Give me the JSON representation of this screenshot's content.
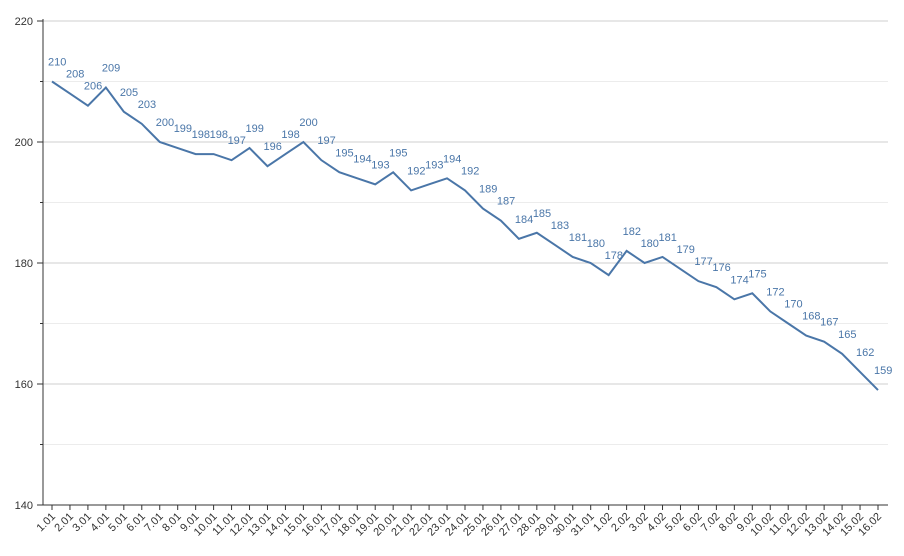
{
  "chart_data": {
    "type": "line",
    "categories": [
      "1.01",
      "2.01",
      "3.01",
      "4.01",
      "5.01",
      "6.01",
      "7.01",
      "8.01",
      "9.01",
      "10.01",
      "11.01",
      "12.01",
      "13.01",
      "14.01",
      "15.01",
      "16.01",
      "17.01",
      "18.01",
      "19.01",
      "20.01",
      "21.01",
      "22.01",
      "23.01",
      "24.01",
      "25.01",
      "26.01",
      "27.01",
      "28.01",
      "29.01",
      "30.01",
      "31.01",
      "1.02",
      "2.02",
      "3.02",
      "4.02",
      "5.02",
      "6.02",
      "7.02",
      "8.02",
      "9.02",
      "10.02",
      "11.02",
      "12.02",
      "13.02",
      "14.02",
      "15.02",
      "16.02"
    ],
    "values": [
      210,
      208,
      206,
      209,
      205,
      203,
      200,
      199,
      198,
      198,
      197,
      199,
      196,
      198,
      200,
      197,
      195,
      194,
      193,
      195,
      192,
      193,
      194,
      192,
      189,
      187,
      184,
      185,
      183,
      181,
      180,
      178,
      182,
      180,
      181,
      179,
      177,
      176,
      174,
      175,
      172,
      170,
      168,
      167,
      165,
      162,
      159
    ],
    "color": "#4a76a8",
    "ylim": [
      140,
      220
    ],
    "yticks": [
      140,
      160,
      180,
      200,
      220
    ],
    "minor_yticks": [
      150,
      170,
      190,
      210
    ],
    "grid": true
  }
}
